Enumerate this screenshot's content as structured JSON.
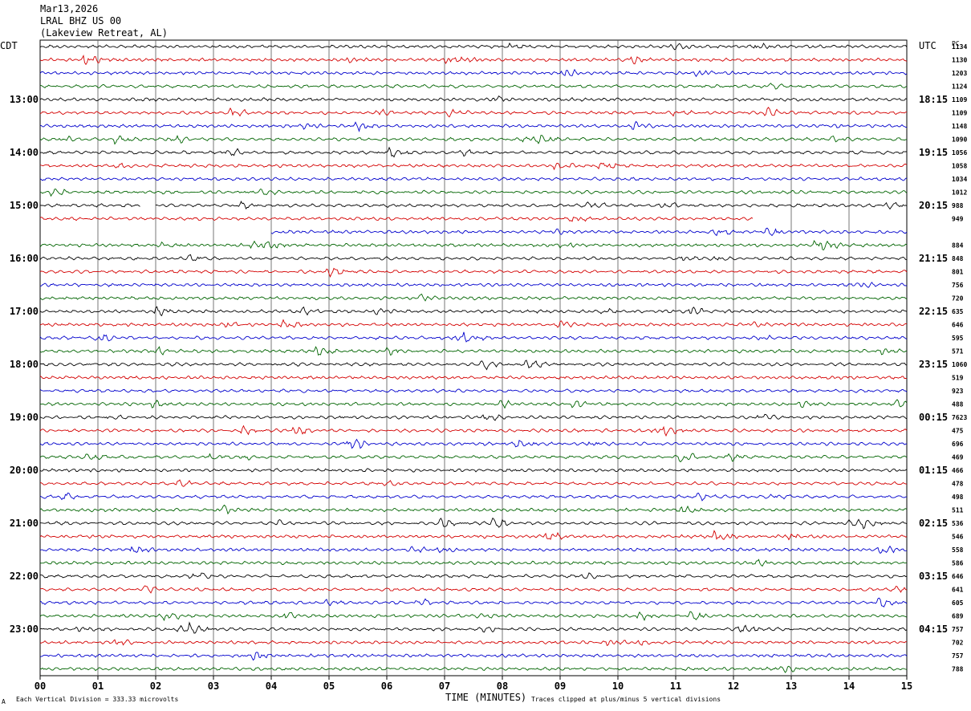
{
  "header": {
    "date": "Mar13,2026",
    "station": "LRAL BHZ US 00",
    "location": "(Lakeview Retreat, AL)"
  },
  "left_axis_label": "CDT",
  "right_axis_label": "UTC",
  "right_column_label": "PC",
  "xlabel": "TIME (MINUTES)",
  "footer": {
    "left_mark": "A",
    "scale": "Each Vertical Division =  333.33 microvolts",
    "clip": "Traces clipped at plus/minus 5 vertical divisions"
  },
  "colors": {
    "trace_cycle": [
      "#000000",
      "#d40000",
      "#0000cc",
      "#006400"
    ],
    "grid": "#000000"
  },
  "chart_data": {
    "type": "line",
    "title": "",
    "xlim": [
      0,
      15
    ],
    "x_ticks": [
      "00",
      "01",
      "02",
      "03",
      "04",
      "05",
      "06",
      "07",
      "08",
      "09",
      "10",
      "11",
      "12",
      "13",
      "14",
      "15"
    ],
    "left_hour_labels": [
      "13:00",
      "14:00",
      "15:00",
      "16:00",
      "17:00",
      "18:00",
      "19:00",
      "20:00",
      "21:00",
      "22:00",
      "23:00"
    ],
    "right_hour_labels": [
      "18:15",
      "19:15",
      "20:15",
      "21:15",
      "22:15",
      "23:15",
      "00:15",
      "01:15",
      "02:15",
      "03:15",
      "04:15"
    ],
    "traces_per_hour": 4,
    "trace_count": 48,
    "row_values": [
      "1134",
      "1130",
      "1203",
      "1124",
      "1109",
      "1109",
      "1148",
      "1090",
      "1056",
      "1058",
      "1034",
      "1012",
      "988",
      "949",
      "",
      "884",
      "848",
      "801",
      "756",
      "720",
      "635",
      "646",
      "595",
      "571",
      "1060",
      "519",
      "923",
      "488",
      "7623",
      "475",
      "696",
      "469",
      "466",
      "478",
      "498",
      "511",
      "536",
      "546",
      "558",
      "586",
      "646",
      "641",
      "605",
      "689",
      "757",
      "702",
      "757",
      "788"
    ],
    "gaps": [
      {
        "row": 12,
        "x_start": 1.75,
        "x_end": 2.0
      },
      {
        "row": 13,
        "x_start": 12.35,
        "x_end": 15
      },
      {
        "row": 14,
        "x_start": 0,
        "x_end": 4.0
      }
    ]
  }
}
